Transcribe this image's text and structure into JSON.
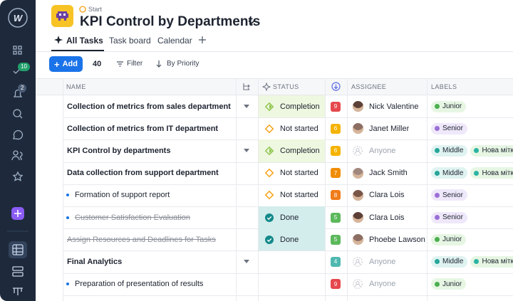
{
  "sidebar": {
    "badges": [
      "10",
      "2"
    ]
  },
  "header": {
    "breadcrumb": "Start",
    "title": "KPI Control by Departments"
  },
  "tabs": [
    "All Tasks",
    "Task board",
    "Calendar"
  ],
  "toolbar": {
    "add": "Add",
    "count": 40,
    "filter": "Filter",
    "sort": "By Priority"
  },
  "table": {
    "columns": [
      "NAME",
      "STATUS",
      "ASSIGNEE",
      "LABELS"
    ],
    "rows": [
      {
        "name": "Collection of metrics from sales department",
        "bold": true,
        "expandable": true,
        "status": "Completion",
        "status_color": "#8bc34a",
        "status_bg": "#eef7df",
        "priority": 9,
        "priority_color": "#e5484d",
        "assignee": "Nick Valentine",
        "labels": [
          {
            "text": "Junior",
            "color": "#4caf50",
            "bg": "#e6f6e3"
          }
        ]
      },
      {
        "name": "Collection of metrics from IT department",
        "bold": true,
        "status": "Not started",
        "status_color": "#f59e0b",
        "priority": 6,
        "priority_color": "#f5b300",
        "assignee": "Janet Miller",
        "labels": [
          {
            "text": "Senior",
            "color": "#9b6fd6",
            "bg": "#efe8fa"
          }
        ]
      },
      {
        "name": "KPI Control by departments",
        "bold": true,
        "expandable": true,
        "status": "Completion",
        "status_color": "#8bc34a",
        "status_bg": "#eef7df",
        "priority": 6,
        "priority_color": "#f5b300",
        "assignee": "Anyone",
        "anyone": true,
        "labels": [
          {
            "text": "Middle",
            "color": "#26a69a",
            "bg": "#dff3f1"
          },
          {
            "text": "Нова мітка",
            "color": "#2bb3a3",
            "bg": "#e6f6e3"
          }
        ]
      },
      {
        "name": "Data collection from support department",
        "bold": true,
        "status": "Not started",
        "status_color": "#f59e0b",
        "priority": 7,
        "priority_color": "#f08c00",
        "assignee": "Jack Smith",
        "labels": [
          {
            "text": "Middle",
            "color": "#26a69a",
            "bg": "#dff3f1"
          },
          {
            "text": "Нова мітка",
            "color": "#2bb3a3",
            "bg": "#e6f6e3"
          }
        ]
      },
      {
        "name": "Formation of support report",
        "sub": true,
        "status": "Not started",
        "status_color": "#f59e0b",
        "priority": 8,
        "priority_color": "#f07c1a",
        "assignee": "Clara Lois",
        "labels": [
          {
            "text": "Senior",
            "color": "#9b6fd6",
            "bg": "#efe8fa"
          }
        ]
      },
      {
        "name": "Customer Satisfaction Evaluation",
        "sub": true,
        "done": true,
        "status": "Done",
        "status_color": "#138a8a",
        "status_bg": "#d3ecec",
        "priority": 5,
        "priority_color": "#5cb85c",
        "assignee": "Clara Lois",
        "labels": [
          {
            "text": "Senior",
            "color": "#9b6fd6",
            "bg": "#efe8fa"
          }
        ]
      },
      {
        "name": "Assign Resources and Deadlines for Tasks",
        "done": true,
        "status": "Done",
        "status_color": "#138a8a",
        "status_bg": "#d3ecec",
        "priority": 5,
        "priority_color": "#5cb85c",
        "assignee": "Phoebe Lawson",
        "labels": [
          {
            "text": "Junior",
            "color": "#4caf50",
            "bg": "#e6f6e3"
          }
        ]
      },
      {
        "name": "Final Analytics",
        "bold": true,
        "expandable": true,
        "status": null,
        "priority": 4,
        "priority_color": "#4fb8b0",
        "assignee": "Anyone",
        "anyone": true,
        "labels": [
          {
            "text": "Middle",
            "color": "#26a69a",
            "bg": "#dff3f1"
          },
          {
            "text": "Нова мітка",
            "color": "#2bb3a3",
            "bg": "#e6f6e3"
          }
        ]
      },
      {
        "name": "Preparation of presentation of results",
        "sub": true,
        "status": null,
        "priority": 9,
        "priority_color": "#e5484d",
        "assignee": "Anyone",
        "anyone": true,
        "labels": [
          {
            "text": "Junior",
            "color": "#4caf50",
            "bg": "#e6f6e3"
          }
        ]
      }
    ]
  }
}
